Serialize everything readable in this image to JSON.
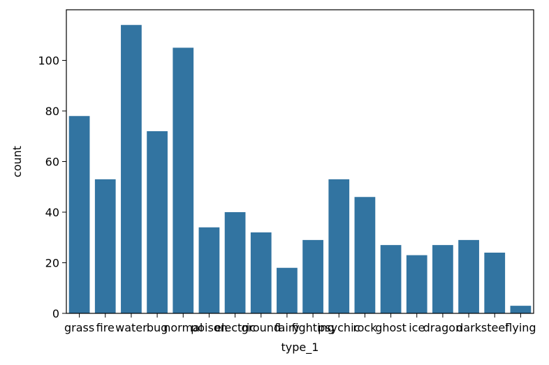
{
  "chart_data": {
    "type": "bar",
    "xlabel": "type_1",
    "ylabel": "count",
    "categories": [
      "grass",
      "fire",
      "water",
      "bug",
      "normal",
      "poison",
      "electric",
      "ground",
      "fairy",
      "fighting",
      "psychic",
      "rock",
      "ghost",
      "ice",
      "dragon",
      "dark",
      "steel",
      "flying"
    ],
    "values": [
      78,
      53,
      114,
      72,
      105,
      34,
      40,
      32,
      18,
      29,
      53,
      46,
      27,
      23,
      27,
      29,
      24,
      3
    ],
    "ylim": [
      0,
      120
    ],
    "yticks": [
      0,
      20,
      40,
      60,
      80,
      100
    ],
    "bar_color": "#3274a1",
    "grid": false,
    "legend": false
  }
}
